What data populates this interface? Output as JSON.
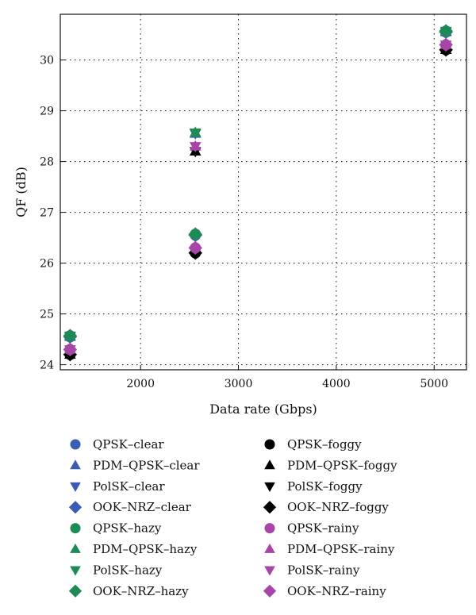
{
  "chart_data": {
    "type": "scatter",
    "xlabel": "Data rate (Gbps)",
    "ylabel": "QF (dB)",
    "xlim": [
      1180,
      5330
    ],
    "ylim": [
      23.9,
      30.9
    ],
    "x_ticks": [
      2000,
      3000,
      4000,
      5000
    ],
    "y_ticks": [
      24,
      25,
      26,
      27,
      28,
      29,
      30
    ],
    "grid": true,
    "legend_position": "below",
    "series": [
      {
        "name": "QPSK–clear",
        "marker": "circle",
        "color": "#3b5bb5",
        "x": [
          1280,
          2560,
          5120
        ],
        "y": [
          24.55,
          26.55,
          30.55
        ]
      },
      {
        "name": "PDM–QPSK–clear",
        "marker": "triangle-up",
        "color": "#3b5bb5",
        "x": [
          1280,
          2560,
          5120
        ],
        "y": [
          24.55,
          28.55,
          30.55
        ]
      },
      {
        "name": "PolSK–clear",
        "marker": "triangle-down",
        "color": "#3b5bb5",
        "x": [
          1280,
          2560,
          5120
        ],
        "y": [
          24.55,
          28.55,
          30.55
        ]
      },
      {
        "name": "OOK–NRZ–clear",
        "marker": "diamond",
        "color": "#3b5bb5",
        "x": [
          1280,
          2560,
          5120
        ],
        "y": [
          24.55,
          26.55,
          30.55
        ]
      },
      {
        "name": "QPSK–foggy",
        "marker": "circle",
        "color": "#000000",
        "x": [
          1280,
          2560,
          5120
        ],
        "y": [
          24.2,
          26.2,
          30.2
        ]
      },
      {
        "name": "PDM–QPSK–foggy",
        "marker": "triangle-up",
        "color": "#000000",
        "x": [
          1280,
          2560,
          5120
        ],
        "y": [
          24.2,
          28.2,
          30.2
        ]
      },
      {
        "name": "PolSK–foggy",
        "marker": "triangle-down",
        "color": "#000000",
        "x": [
          1280,
          2560,
          5120
        ],
        "y": [
          24.2,
          28.2,
          30.2
        ]
      },
      {
        "name": "OOK–NRZ–foggy",
        "marker": "diamond",
        "color": "#000000",
        "x": [
          1280,
          2560,
          5120
        ],
        "y": [
          24.2,
          26.2,
          30.2
        ]
      },
      {
        "name": "QPSK–hazy",
        "marker": "circle",
        "color": "#1e8a55",
        "x": [
          1280,
          2560,
          5120
        ],
        "y": [
          24.57,
          26.57,
          30.57
        ]
      },
      {
        "name": "PDM–QPSK–hazy",
        "marker": "triangle-up",
        "color": "#1e8a55",
        "x": [
          1280,
          2560,
          5120
        ],
        "y": [
          24.57,
          28.57,
          30.57
        ]
      },
      {
        "name": "PolSK–hazy",
        "marker": "triangle-down",
        "color": "#1e8a55",
        "x": [
          1280,
          2560,
          5120
        ],
        "y": [
          24.57,
          28.57,
          30.57
        ]
      },
      {
        "name": "OOK–NRZ–hazy",
        "marker": "diamond",
        "color": "#1e8a55",
        "x": [
          1280,
          2560,
          5120
        ],
        "y": [
          24.57,
          26.57,
          30.57
        ]
      },
      {
        "name": "QPSK–rainy",
        "marker": "circle",
        "color": "#a845a8",
        "x": [
          1280,
          2560,
          5120
        ],
        "y": [
          24.3,
          26.3,
          30.3
        ]
      },
      {
        "name": "PDM–QPSK–rainy",
        "marker": "triangle-up",
        "color": "#a845a8",
        "x": [
          1280,
          2560,
          5120
        ],
        "y": [
          24.3,
          28.3,
          30.3
        ]
      },
      {
        "name": "PolSK–rainy",
        "marker": "triangle-down",
        "color": "#a845a8",
        "x": [
          1280,
          2560,
          5120
        ],
        "y": [
          24.3,
          28.3,
          30.3
        ]
      },
      {
        "name": "OOK–NRZ–rainy",
        "marker": "diamond",
        "color": "#a845a8",
        "x": [
          1280,
          2560,
          5120
        ],
        "y": [
          24.3,
          26.3,
          30.3
        ]
      }
    ],
    "legend_columns": [
      [
        "QPSK–clear",
        "PDM–QPSK–clear",
        "PolSK–clear",
        "OOK–NRZ–clear",
        "QPSK–hazy",
        "PDM–QPSK–hazy",
        "PolSK–hazy",
        "OOK–NRZ–hazy"
      ],
      [
        "QPSK–foggy",
        "PDM–QPSK–foggy",
        "PolSK–foggy",
        "OOK–NRZ–foggy",
        "QPSK–rainy",
        "PDM–QPSK–rainy",
        "PolSK–rainy",
        "OOK–NRZ–rainy"
      ]
    ]
  }
}
